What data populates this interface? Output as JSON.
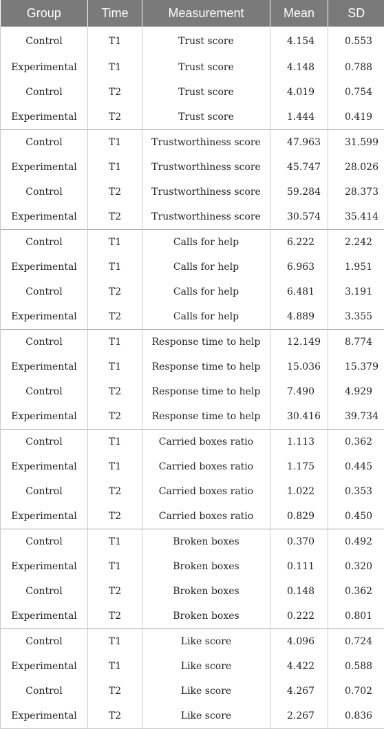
{
  "table": {
    "headers": [
      "Group",
      "Time",
      "Measurement",
      "Mean",
      "SD"
    ],
    "rows": [
      [
        "Control",
        "T1",
        "Trust score",
        "4.154",
        "0.553"
      ],
      [
        "Experimental",
        "T1",
        "Trust score",
        "4.148",
        "0.788"
      ],
      [
        "Control",
        "T2",
        "Trust score",
        "4.019",
        "0.754"
      ],
      [
        "Experimental",
        "T2",
        "Trust score",
        "1.444",
        "0.419"
      ],
      [
        "Control",
        "T1",
        "Trustworthiness score",
        "47.963",
        "31.599"
      ],
      [
        "Experimental",
        "T1",
        "Trustworthiness score",
        "45.747",
        "28.026"
      ],
      [
        "Control",
        "T2",
        "Trustworthiness score",
        "59.284",
        "28.373"
      ],
      [
        "Experimental",
        "T2",
        "Trustworthiness score",
        "30.574",
        "35.414"
      ],
      [
        "Control",
        "T1",
        "Calls for help",
        "6.222",
        "2.242"
      ],
      [
        "Experimental",
        "T1",
        "Calls for help",
        "6.963",
        "1.951"
      ],
      [
        "Control",
        "T2",
        "Calls for help",
        "6.481",
        "3.191"
      ],
      [
        "Experimental",
        "T2",
        "Calls for help",
        "4.889",
        "3.355"
      ],
      [
        "Control",
        "T1",
        "Response time to help",
        "12.149",
        "8.774"
      ],
      [
        "Experimental",
        "T1",
        "Response time to help",
        "15.036",
        "15.379"
      ],
      [
        "Control",
        "T2",
        "Response time to help",
        "7.490",
        "4.929"
      ],
      [
        "Experimental",
        "T2",
        "Response time to help",
        "30.416",
        "39.734"
      ],
      [
        "Control",
        "T1",
        "Carried boxes ratio",
        "1.113",
        "0.362"
      ],
      [
        "Experimental",
        "T1",
        "Carried boxes ratio",
        "1.175",
        "0.445"
      ],
      [
        "Control",
        "T2",
        "Carried boxes ratio",
        "1.022",
        "0.353"
      ],
      [
        "Experimental",
        "T2",
        "Carried boxes ratio",
        "0.829",
        "0.450"
      ],
      [
        "Control",
        "T1",
        "Broken boxes",
        "0.370",
        "0.492"
      ],
      [
        "Experimental",
        "T1",
        "Broken boxes",
        "0.111",
        "0.320"
      ],
      [
        "Control",
        "T2",
        "Broken boxes",
        "0.148",
        "0.362"
      ],
      [
        "Experimental",
        "T2",
        "Broken boxes",
        "0.222",
        "0.801"
      ],
      [
        "Control",
        "T1",
        "Like score",
        "4.096",
        "0.724"
      ],
      [
        "Experimental",
        "T1",
        "Like score",
        "4.422",
        "0.588"
      ],
      [
        "Control",
        "T2",
        "Like score",
        "4.267",
        "0.702"
      ],
      [
        "Experimental",
        "T2",
        "Like score",
        "2.267",
        "0.836"
      ]
    ]
  },
  "colors": {
    "header_background": "#7a7a7a",
    "header_text": "#ffffff",
    "body_text": "#222222",
    "grid_line": "#c9c9c9"
  }
}
